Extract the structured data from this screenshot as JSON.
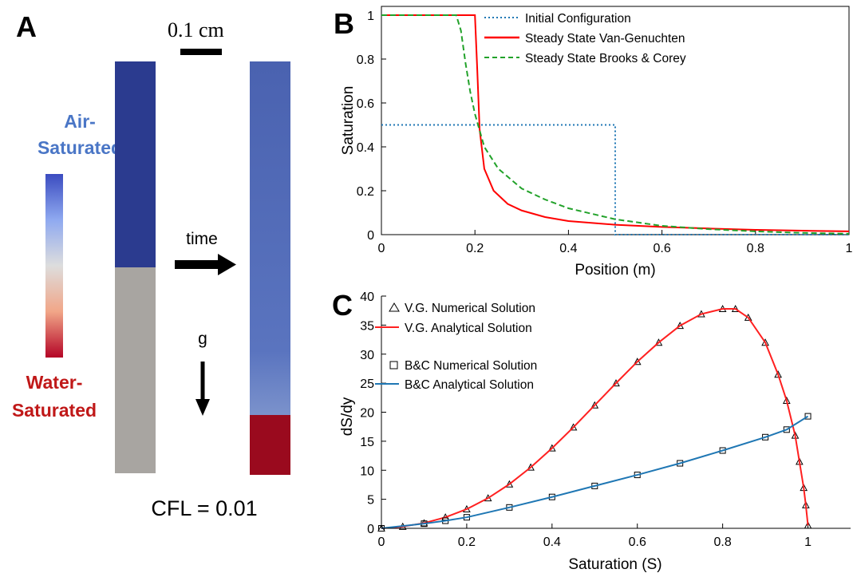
{
  "panels": {
    "a": {
      "label": "A",
      "scale_label": "0.1 cm",
      "air_line1": "Air-",
      "air_line2": "Saturated",
      "water_line1": "Water-",
      "water_line2": "Saturated",
      "time_label": "time",
      "gravity_label": "g",
      "cfl_label": "CFL = 0.01",
      "colors": {
        "initial_top": "#2b3b8f",
        "initial_bottom": "#a8a5a1",
        "final_top": "#4f67b3",
        "final_bottom": "#9a0a1e",
        "colorbar_top": "#3b4cc0",
        "colorbar_mid": "#dddddd",
        "colorbar_bottom": "#b40426"
      }
    },
    "b": {
      "label": "B"
    },
    "c": {
      "label": "C"
    }
  },
  "chart_data": [
    {
      "type": "line",
      "xlabel": "Position (m)",
      "ylabel": "Saturation",
      "xlim": [
        0,
        1
      ],
      "ylim": [
        0,
        1.04
      ],
      "xticks": [
        0,
        0.2,
        0.4,
        0.6,
        0.8,
        1
      ],
      "xtick_labels": [
        "0",
        "0.2",
        "0.4",
        "0.6",
        "0.8",
        "1"
      ],
      "yticks": [
        0,
        0.2,
        0.4,
        0.6,
        0.8,
        1
      ],
      "ytick_labels": [
        "0",
        "0.2",
        "0.4",
        "0.6",
        "0.8",
        "1"
      ],
      "legend_position": "top-right",
      "series": [
        {
          "name": "Initial Configuration",
          "color": "#1f77b4",
          "style": "dotted",
          "x": [
            0,
            0.5,
            0.5,
            1
          ],
          "y": [
            0.5,
            0.5,
            0,
            0
          ]
        },
        {
          "name": "Steady State Van-Genuchten",
          "color": "#ff0000",
          "style": "solid",
          "x": [
            0,
            0.2,
            0.205,
            0.21,
            0.22,
            0.24,
            0.27,
            0.3,
            0.35,
            0.4,
            0.5,
            0.6,
            0.7,
            0.8,
            0.9,
            1.0
          ],
          "y": [
            1,
            1,
            0.75,
            0.48,
            0.3,
            0.2,
            0.14,
            0.11,
            0.08,
            0.062,
            0.045,
            0.035,
            0.028,
            0.022,
            0.018,
            0.015
          ]
        },
        {
          "name": "Steady State Brooks & Corey",
          "color": "#22a22a",
          "style": "dashed",
          "x": [
            0,
            0.16,
            0.17,
            0.18,
            0.19,
            0.2,
            0.22,
            0.25,
            0.3,
            0.35,
            0.4,
            0.5,
            0.6,
            0.7,
            0.8,
            0.9,
            1.0
          ],
          "y": [
            1,
            1,
            0.93,
            0.78,
            0.65,
            0.55,
            0.4,
            0.3,
            0.21,
            0.16,
            0.12,
            0.07,
            0.04,
            0.025,
            0.015,
            0.008,
            0.004
          ]
        }
      ]
    },
    {
      "type": "line",
      "xlabel": "Saturation (S)",
      "ylabel": "dS/dy",
      "xlim": [
        0,
        1.1
      ],
      "ylim": [
        0,
        40
      ],
      "xticks": [
        0,
        0.2,
        0.4,
        0.6,
        0.8,
        1
      ],
      "xtick_labels": [
        "0",
        "0.2",
        "0.4",
        "0.6",
        "0.8",
        "1"
      ],
      "yticks": [
        0,
        5,
        10,
        15,
        20,
        25,
        30,
        35,
        40
      ],
      "ytick_labels": [
        "0",
        "5",
        "10",
        "15",
        "20",
        "25",
        "30",
        "35",
        "40"
      ],
      "legend_position": "top-left",
      "series": [
        {
          "name": "V.G. Numerical Solution",
          "color": "#000000",
          "marker": "triangle",
          "x": [
            0,
            0.05,
            0.1,
            0.15,
            0.2,
            0.25,
            0.3,
            0.35,
            0.4,
            0.45,
            0.5,
            0.55,
            0.6,
            0.65,
            0.7,
            0.75,
            0.8,
            0.83,
            0.86,
            0.9,
            0.93,
            0.95,
            0.97,
            0.98,
            0.99,
            0.995,
            1.0
          ],
          "y": [
            0,
            0.3,
            0.9,
            1.9,
            3.3,
            5.2,
            7.6,
            10.5,
            13.8,
            17.4,
            21.2,
            25.0,
            28.7,
            32.0,
            34.9,
            36.9,
            37.8,
            37.8,
            36.3,
            32.0,
            26.5,
            22.0,
            16.0,
            11.5,
            7.0,
            4.0,
            0.5
          ]
        },
        {
          "name": "V.G. Analytical Solution",
          "color": "#ff2020",
          "style": "solid",
          "x": [
            0,
            0.05,
            0.1,
            0.15,
            0.2,
            0.25,
            0.3,
            0.35,
            0.4,
            0.45,
            0.5,
            0.55,
            0.6,
            0.65,
            0.7,
            0.75,
            0.8,
            0.83,
            0.86,
            0.9,
            0.93,
            0.95,
            0.97,
            0.98,
            0.99,
            0.995,
            1.0
          ],
          "y": [
            0,
            0.3,
            0.9,
            1.9,
            3.3,
            5.2,
            7.6,
            10.5,
            13.8,
            17.4,
            21.2,
            25.0,
            28.7,
            32.0,
            34.9,
            36.9,
            37.8,
            37.8,
            36.3,
            32.0,
            26.5,
            22.0,
            16.0,
            11.5,
            7.0,
            4.0,
            0.5
          ]
        },
        {
          "name": "B&C Numerical Solution",
          "color": "#000000",
          "marker": "square",
          "x": [
            0,
            0.1,
            0.15,
            0.2,
            0.3,
            0.4,
            0.5,
            0.6,
            0.7,
            0.8,
            0.9,
            0.95,
            1.0
          ],
          "y": [
            0,
            0.8,
            1.3,
            1.9,
            3.6,
            5.4,
            7.3,
            9.2,
            11.2,
            13.4,
            15.7,
            17.0,
            19.3
          ]
        },
        {
          "name": "B&C Analytical Solution",
          "color": "#1f77b4",
          "style": "solid",
          "x": [
            0,
            0.1,
            0.15,
            0.2,
            0.3,
            0.4,
            0.5,
            0.6,
            0.7,
            0.8,
            0.9,
            0.95,
            1.0
          ],
          "y": [
            0,
            0.8,
            1.3,
            1.9,
            3.6,
            5.4,
            7.3,
            9.2,
            11.2,
            13.4,
            15.7,
            17.0,
            19.3
          ]
        }
      ]
    }
  ]
}
